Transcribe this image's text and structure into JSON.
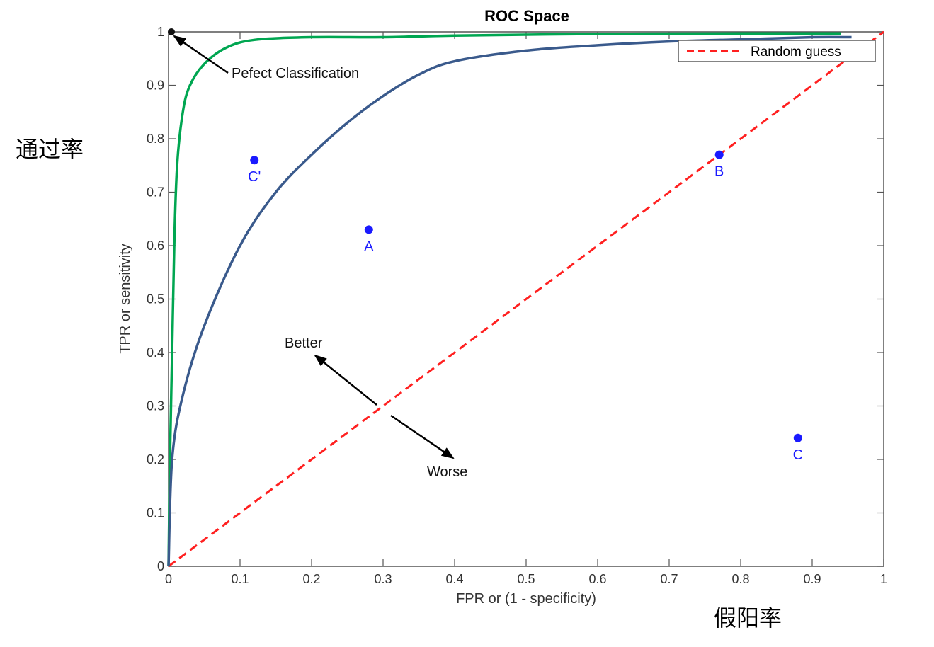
{
  "chart_data": {
    "type": "line",
    "title": "ROC Space",
    "xlabel": "FPR or (1 - specificity)",
    "ylabel": "TPR or sensitivity",
    "xlim": [
      0,
      1
    ],
    "ylim": [
      0,
      1
    ],
    "x_ticks": [
      "0",
      "0.1",
      "0.2",
      "0.3",
      "0.4",
      "0.5",
      "0.6",
      "0.7",
      "0.8",
      "0.9",
      "1"
    ],
    "y_ticks": [
      "0",
      "0.1",
      "0.2",
      "0.3",
      "0.4",
      "0.5",
      "0.6",
      "0.7",
      "0.8",
      "0.9",
      "1"
    ],
    "grid": false,
    "legend_position": "top-right",
    "series": [
      {
        "name": "Random guess",
        "style": "dashed",
        "color": "#ff2020",
        "points": [
          [
            0,
            0
          ],
          [
            1,
            1
          ]
        ]
      },
      {
        "style": "solid",
        "color": "#00a651",
        "points": [
          [
            0.0,
            0.0
          ],
          [
            0.002,
            0.2
          ],
          [
            0.005,
            0.4
          ],
          [
            0.008,
            0.6
          ],
          [
            0.012,
            0.75
          ],
          [
            0.02,
            0.85
          ],
          [
            0.03,
            0.9
          ],
          [
            0.05,
            0.94
          ],
          [
            0.08,
            0.97
          ],
          [
            0.12,
            0.985
          ],
          [
            0.2,
            0.99
          ],
          [
            0.3,
            0.99
          ],
          [
            0.4,
            0.993
          ],
          [
            0.6,
            0.996
          ],
          [
            0.8,
            0.997
          ],
          [
            0.94,
            0.997
          ]
        ]
      },
      {
        "style": "solid",
        "color": "#3a5a8c",
        "points": [
          [
            0.0,
            0.0
          ],
          [
            0.005,
            0.2
          ],
          [
            0.02,
            0.32
          ],
          [
            0.05,
            0.45
          ],
          [
            0.1,
            0.6
          ],
          [
            0.15,
            0.7
          ],
          [
            0.2,
            0.77
          ],
          [
            0.25,
            0.83
          ],
          [
            0.3,
            0.88
          ],
          [
            0.35,
            0.92
          ],
          [
            0.4,
            0.945
          ],
          [
            0.5,
            0.965
          ],
          [
            0.6,
            0.975
          ],
          [
            0.7,
            0.982
          ],
          [
            0.8,
            0.986
          ],
          [
            0.9,
            0.99
          ],
          [
            0.955,
            0.99
          ]
        ]
      }
    ],
    "points": [
      {
        "label": "C'",
        "x": 0.12,
        "y": 0.76
      },
      {
        "label": "A",
        "x": 0.28,
        "y": 0.63
      },
      {
        "label": "B",
        "x": 0.77,
        "y": 0.77
      },
      {
        "label": "C",
        "x": 0.88,
        "y": 0.24
      }
    ],
    "annotations": {
      "perfect": {
        "text": "Pefect Classification",
        "x": 0,
        "y": 1
      },
      "better": "Better",
      "worse": "Worse"
    }
  },
  "side_labels": {
    "tpr_cn": "通过率",
    "fpr_cn": "假阳率"
  }
}
